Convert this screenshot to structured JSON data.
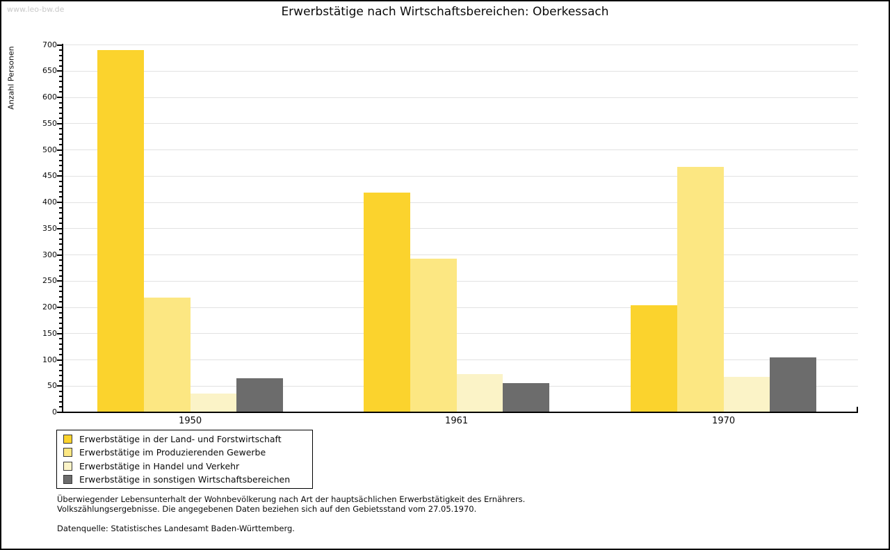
{
  "watermark": "www.leo-bw.de",
  "title": "Erwerbstätige nach Wirtschaftsbereichen: Oberkessach",
  "footnote": {
    "line1": "Überwiegender Lebensunterhalt der Wohnbevölkerung nach Art der hauptsächlichen Erwerbstätigkeit des Ernährers.",
    "line2": "Volkszählungsergebnisse. Die angegebenen Daten beziehen sich auf den Gebietsstand vom 27.05.1970.",
    "source": "Datenquelle: Statistisches Landesamt Baden-Württemberg."
  },
  "chart_data": {
    "type": "bar",
    "title": "Erwerbstätige nach Wirtschaftsbereichen: Oberkessach",
    "xlabel": "",
    "ylabel": "Anzahl Personen",
    "categories": [
      "1950",
      "1961",
      "1970"
    ],
    "series": [
      {
        "name": "Erwerbstätige in der Land- und Forstwirtschaft",
        "color": "#fbd32d",
        "values": [
          690,
          418,
          204
        ]
      },
      {
        "name": "Erwerbstätige im Produzierenden Gewerbe",
        "color": "#fce782",
        "values": [
          219,
          293,
          468
        ]
      },
      {
        "name": "Erwerbstätige in Handel und Verkehr",
        "color": "#fbf3c7",
        "values": [
          36,
          73,
          68
        ]
      },
      {
        "name": "Erwerbstätige in sonstigen Wirtschaftsbereichen",
        "color": "#6c6c6c",
        "values": [
          65,
          55,
          104
        ]
      }
    ],
    "ylim": [
      0,
      700
    ],
    "ytick_step": 50,
    "minor_tick_step": 10,
    "grid": true,
    "gridline_color": "#e2e2e2",
    "legend_position": "bottom-left"
  }
}
